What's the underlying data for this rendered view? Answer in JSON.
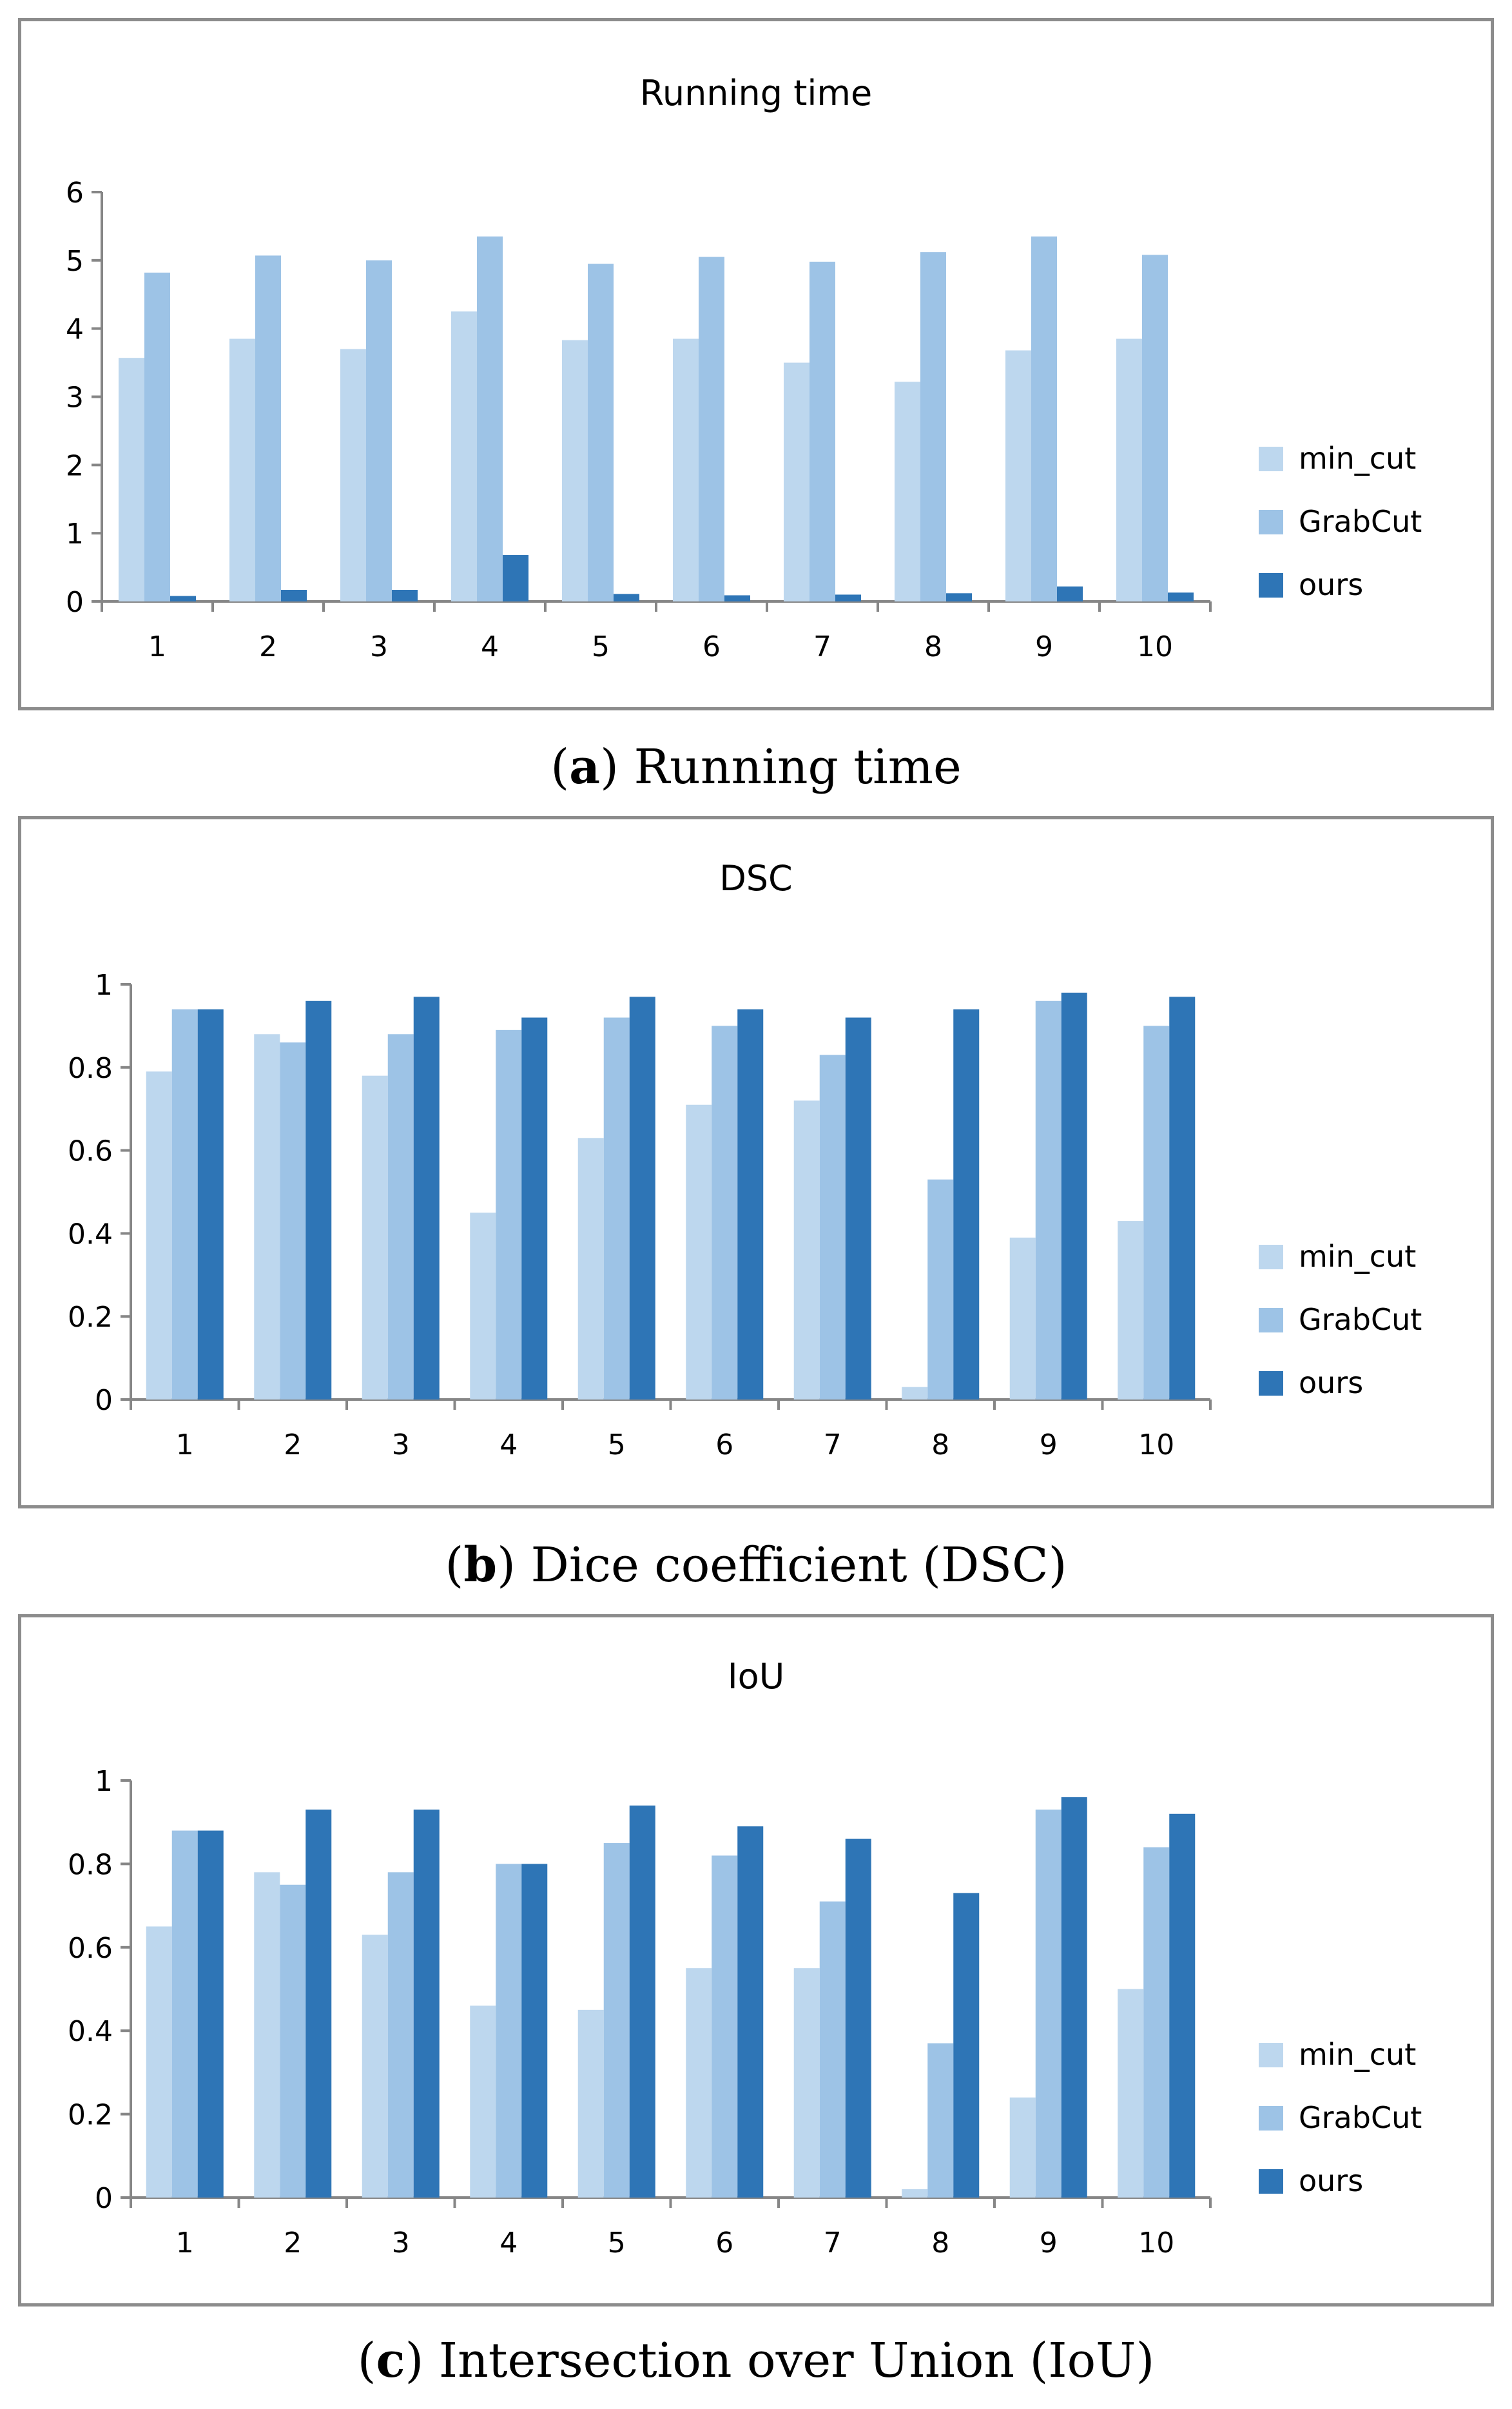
{
  "colors": {
    "min_cut": "#bdd7ee",
    "GrabCut": "#9dc3e6",
    "ours": "#2e75b6",
    "axis": "#868686"
  },
  "captions": [
    {
      "letter": "a",
      "text": "Running time"
    },
    {
      "letter": "b",
      "text": "Dice coefficient (DSC)"
    },
    {
      "letter": "c",
      "text": "Intersection over Union (IoU)"
    }
  ],
  "chart_data": [
    {
      "type": "bar",
      "title": "Running time",
      "categories": [
        "1",
        "2",
        "3",
        "4",
        "5",
        "6",
        "7",
        "8",
        "9",
        "10"
      ],
      "yticks": [
        "0",
        "1",
        "2",
        "3",
        "4",
        "5",
        "6"
      ],
      "ylim": [
        0,
        6
      ],
      "legend_position": "right",
      "series": [
        {
          "name": "min_cut",
          "values": [
            3.57,
            3.85,
            3.7,
            4.25,
            3.83,
            3.85,
            3.5,
            3.22,
            3.68,
            3.85
          ]
        },
        {
          "name": "GrabCut",
          "values": [
            4.82,
            5.07,
            5.0,
            5.35,
            4.95,
            5.05,
            4.98,
            5.12,
            5.35,
            5.08
          ]
        },
        {
          "name": "ours",
          "values": [
            0.08,
            0.17,
            0.17,
            0.68,
            0.11,
            0.09,
            0.1,
            0.12,
            0.22,
            0.13
          ]
        }
      ]
    },
    {
      "type": "bar",
      "title": "DSC",
      "categories": [
        "1",
        "2",
        "3",
        "4",
        "5",
        "6",
        "7",
        "8",
        "9",
        "10"
      ],
      "yticks": [
        "0",
        "0.2",
        "0.4",
        "0.6",
        "0.8",
        "1"
      ],
      "ylim": [
        0,
        1
      ],
      "legend_position": "right",
      "series": [
        {
          "name": "min_cut",
          "values": [
            0.79,
            0.88,
            0.78,
            0.45,
            0.63,
            0.71,
            0.72,
            0.03,
            0.39,
            0.43
          ]
        },
        {
          "name": "GrabCut",
          "values": [
            0.94,
            0.86,
            0.88,
            0.89,
            0.92,
            0.9,
            0.83,
            0.53,
            0.96,
            0.9
          ]
        },
        {
          "name": "ours",
          "values": [
            0.94,
            0.96,
            0.97,
            0.92,
            0.97,
            0.94,
            0.92,
            0.94,
            0.98,
            0.97
          ]
        }
      ]
    },
    {
      "type": "bar",
      "title": "IoU",
      "categories": [
        "1",
        "2",
        "3",
        "4",
        "5",
        "6",
        "7",
        "8",
        "9",
        "10"
      ],
      "yticks": [
        "0",
        "0.2",
        "0.4",
        "0.6",
        "0.8",
        "1"
      ],
      "ylim": [
        0,
        1
      ],
      "legend_position": "right",
      "series": [
        {
          "name": "min_cut",
          "values": [
            0.65,
            0.78,
            0.63,
            0.46,
            0.45,
            0.55,
            0.55,
            0.02,
            0.24,
            0.5
          ]
        },
        {
          "name": "GrabCut",
          "values": [
            0.88,
            0.75,
            0.78,
            0.8,
            0.85,
            0.82,
            0.71,
            0.37,
            0.93,
            0.84
          ]
        },
        {
          "name": "ours",
          "values": [
            0.88,
            0.93,
            0.93,
            0.8,
            0.94,
            0.89,
            0.86,
            0.73,
            0.96,
            0.92
          ]
        }
      ]
    }
  ]
}
